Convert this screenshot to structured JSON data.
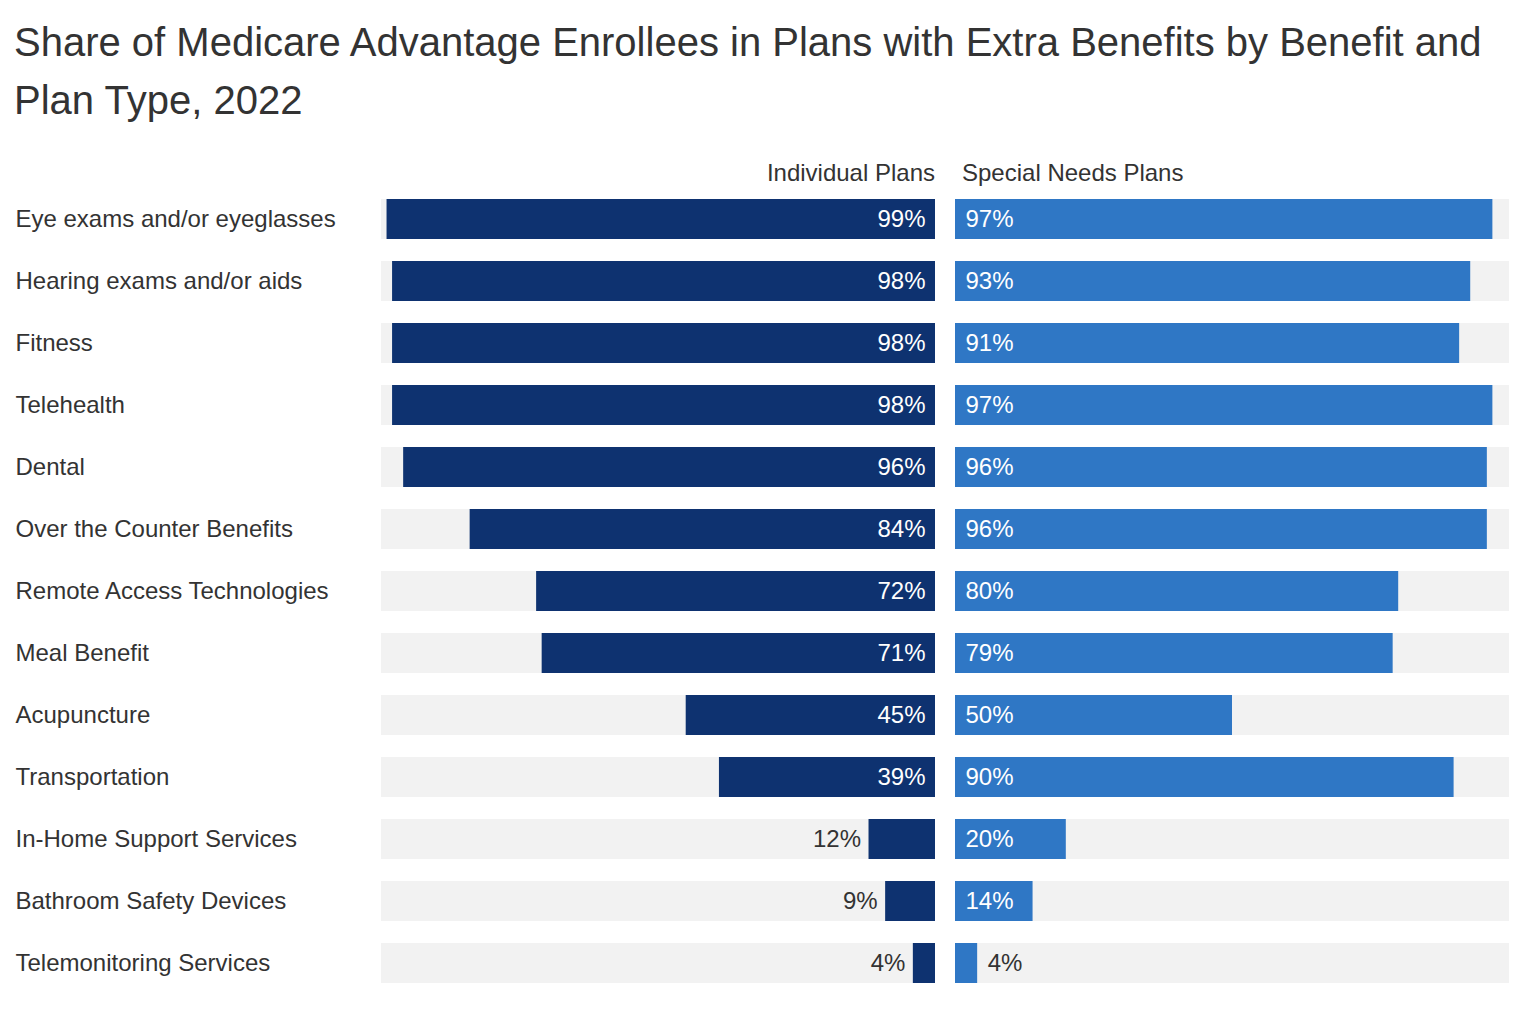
{
  "chart_data": {
    "type": "bar",
    "title": "Share of Medicare Advantage Enrollees in Plans with Extra Benefits by Benefit and Plan Type, 2022",
    "orientation": "horizontal",
    "data_labels": true,
    "tick_labels": "y",
    "xlim": [
      0,
      100
    ],
    "categories": [
      "Eye exams and/or eyeglasses",
      "Hearing exams and/or aids",
      "Fitness",
      "Telehealth",
      "Dental",
      "Over the Counter Benefits",
      "Remote Access Technologies",
      "Meal Benefit",
      "Acupuncture",
      "Transportation",
      "In-Home Support Services",
      "Bathroom Safety Devices",
      "Telemonitoring Services"
    ],
    "series": [
      {
        "name": "Individual Plans",
        "color": "#0e3270",
        "values": [
          99,
          98,
          98,
          98,
          96,
          84,
          72,
          71,
          45,
          39,
          12,
          9,
          4
        ],
        "value_labels": [
          "99%",
          "98%",
          "98%",
          "98%",
          "96%",
          "84%",
          "72%",
          "71%",
          "45%",
          "39%",
          "12%",
          "9%",
          "4%"
        ]
      },
      {
        "name": "Special Needs Plans",
        "color": "#2f77c5",
        "values": [
          97,
          93,
          91,
          97,
          96,
          96,
          80,
          79,
          50,
          90,
          20,
          14,
          4
        ],
        "value_labels": [
          "97%",
          "93%",
          "91%",
          "97%",
          "96%",
          "96%",
          "80%",
          "79%",
          "50%",
          "90%",
          "20%",
          "14%",
          "4%"
        ]
      }
    ]
  }
}
